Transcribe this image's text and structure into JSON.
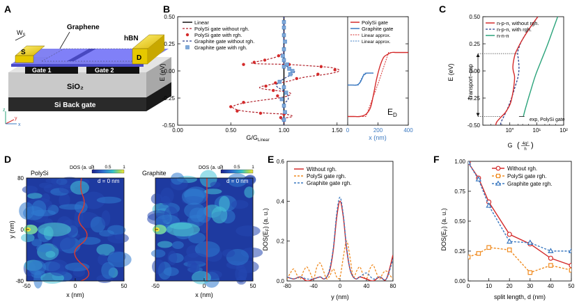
{
  "panels": {
    "A": {
      "letter": "A",
      "labels": {
        "graphene": "Graphene",
        "hbn": "hBN",
        "ws": "W",
        "ws_sub": "S",
        "source": "S",
        "drain": "D",
        "gate1": "Gate 1",
        "gate2": "Gate 2",
        "sio2": "SiO₂",
        "backgate": "Si Back gate"
      },
      "axes": {
        "z": "z",
        "y": "y",
        "x": "x"
      }
    },
    "B": {
      "letter": "B",
      "ylabel": "E (eV)",
      "xlabel_left": "G/G",
      "xlabel_left_sub": "Linear",
      "xlabel_right": "x (nm)",
      "ed": "E",
      "ed_sub": "D",
      "yticks": [
        "0.50",
        "0.25",
        "0.00",
        "-0.25",
        "-0.50"
      ],
      "xticks_left": [
        "0.00",
        "0.50",
        "1.00",
        "1.50"
      ],
      "xticks_right": [
        "0",
        "200",
        "400"
      ],
      "legend_left": [
        "Linear",
        "PolySi gate without rgh.",
        "PolySi gate with rgh.",
        "Graphite gate without rgh.",
        "Graphite gate with rgh."
      ],
      "legend_right": [
        "PolySi gate",
        "Graphite gate",
        "Linear   approx.",
        "Linear   approx."
      ]
    },
    "C": {
      "letter": "C",
      "ylabel": "E (eV)",
      "xlabel": "G",
      "xlabel_frac_num": "4q²",
      "xlabel_frac_den": "h",
      "yticks": [
        "0.50",
        "0.25",
        "0.00",
        "-0.25",
        "-0.50"
      ],
      "xticks": [
        "10°",
        "10¹",
        "10²"
      ],
      "legend": [
        "n-p-n, without rgh.",
        "n-p-n, with rgh.",
        "n-n-n"
      ],
      "transport_gap": "Transport–gap",
      "exp_label": "exp, PolySi gate"
    },
    "D": {
      "letter": "D",
      "left_title": "PolySi",
      "right_title": "Graphite",
      "dos_label": "DOS (a. u.)",
      "cbar_ticks": [
        "0",
        "0.5",
        "1"
      ],
      "d_label": "d = 0 nm",
      "ylabel": "y (nm)",
      "xlabel": "x (nm)",
      "yticks": [
        "80",
        "0",
        "-80"
      ],
      "xticks": [
        "-50",
        "0",
        "50"
      ]
    },
    "E": {
      "letter": "E",
      "ylabel": "DOS(E",
      "ylabel_sub": "F",
      "ylabel_end": ") (a. u.)",
      "xlabel": "y (nm)",
      "legend": [
        "Without rgh.",
        "PolySi gate rgh.",
        "Graphite gate rgh."
      ],
      "yticks": [
        "0.6",
        "0.4",
        "0.2",
        "0.0"
      ],
      "xticks": [
        "-80",
        "-40",
        "0",
        "40",
        "80"
      ]
    },
    "F": {
      "letter": "F",
      "ylabel": "DOS(E",
      "ylabel_sub": "F",
      "ylabel_end": ") (a. u.)",
      "xlabel": "split length, d (nm)",
      "legend": [
        "Without rgh.",
        "PolySi gate rgh.",
        "Graphite gate rgh."
      ],
      "yticks": [
        "1.00",
        "0.75",
        "0.50",
        "0.25",
        "0.00"
      ],
      "xticks": [
        "0",
        "10",
        "20",
        "30",
        "40",
        "50"
      ]
    }
  },
  "colors": {
    "red": "#d42a2a",
    "orange": "#f08a1e",
    "blue": "#3a78c0",
    "navy": "#2b3f8c",
    "green": "#2aa37a",
    "darkred": "#b0202a"
  },
  "chart_data": [
    {
      "panel": "B-left",
      "type": "line",
      "xlim": [
        0,
        1.6
      ],
      "ylim": [
        -0.5,
        0.5
      ],
      "series": [
        {
          "name": "PolySi gate without rgh.",
          "x": [
            1.0,
            1.0,
            0.98,
            0.93,
            0.82,
            0.7,
            1.02,
            1.2,
            1.45,
            1.52,
            1.4,
            1.18,
            1.02,
            0.85,
            0.78,
            1.05,
            1.0,
            0.72,
            0.56,
            0.52,
            0.62,
            0.85,
            1.02,
            1.08,
            0.98,
            1.0,
            1.0
          ],
          "y": [
            0.5,
            0.2,
            0.16,
            0.13,
            0.1,
            0.07,
            0.06,
            0.05,
            0.03,
            0.0,
            -0.03,
            -0.06,
            -0.1,
            -0.13,
            -0.16,
            -0.2,
            -0.24,
            -0.28,
            -0.31,
            -0.34,
            -0.37,
            -0.39,
            -0.4,
            -0.42,
            -0.44,
            -0.46,
            -0.5
          ]
        },
        {
          "name": "PolySi gate with rgh.",
          "x": [
            1.0,
            0.95,
            0.82,
            0.72,
            0.62,
            1.05,
            1.35,
            1.48,
            1.32,
            1.12,
            0.92,
            0.83,
            0.9,
            0.94,
            0.62,
            0.5,
            0.56,
            0.78,
            1.0,
            0.97
          ],
          "y": [
            0.2,
            0.14,
            0.1,
            0.08,
            0.06,
            0.06,
            0.04,
            0.01,
            -0.03,
            -0.07,
            -0.11,
            -0.14,
            -0.18,
            -0.23,
            -0.29,
            -0.33,
            -0.37,
            -0.39,
            -0.4,
            -0.43
          ]
        },
        {
          "name": "Graphite gate without rgh.",
          "x": [
            1.0,
            1.0,
            1.02,
            1.06,
            1.1,
            1.08,
            1.02,
            0.96,
            0.93,
            1.02,
            1.04,
            1.0,
            1.0
          ],
          "y": [
            0.5,
            0.08,
            0.05,
            0.02,
            0.0,
            -0.03,
            -0.06,
            -0.1,
            -0.14,
            -0.2,
            -0.26,
            -0.32,
            -0.5
          ]
        },
        {
          "name": "Graphite gate with rgh.",
          "x": [
            1.0,
            1.0,
            1.0,
            1.01,
            1.0,
            0.99,
            1.0,
            1.03,
            1.0,
            1.05,
            1.08,
            1.06,
            0.96,
            1.0,
            1.02,
            0.98,
            1.0,
            1.01,
            1.0
          ],
          "y": [
            0.45,
            0.4,
            0.33,
            0.27,
            0.2,
            0.14,
            0.1,
            0.06,
            0.04,
            0.02,
            0.0,
            -0.03,
            -0.1,
            -0.15,
            -0.2,
            -0.26,
            -0.32,
            -0.38,
            -0.45
          ]
        }
      ]
    },
    {
      "panel": "B-right",
      "type": "line",
      "xlim": [
        0,
        400
      ],
      "ylim": [
        -0.5,
        0.5
      ],
      "series": [
        {
          "name": "PolySi gate",
          "x": [
            0,
            40,
            80,
            120,
            150,
            170,
            190,
            210,
            225,
            240,
            260,
            290,
            320,
            360,
            400
          ],
          "y": [
            -0.42,
            -0.42,
            -0.42,
            -0.4,
            -0.34,
            -0.22,
            -0.08,
            0.03,
            0.09,
            0.13,
            0.15,
            0.17,
            0.17,
            0.17,
            0.17
          ]
        },
        {
          "name": "Graphite gate",
          "x": [
            0,
            30,
            60,
            80,
            95,
            105,
            115,
            125,
            140,
            170
          ],
          "y": [
            -0.13,
            -0.13,
            -0.13,
            -0.11,
            -0.07,
            -0.04,
            -0.03,
            -0.02,
            -0.02,
            -0.02
          ]
        },
        {
          "name": "Linear approx.",
          "x": [
            0,
            120,
            200,
            270,
            400
          ],
          "y": [
            -0.42,
            -0.42,
            -0.12,
            0.17,
            0.17
          ]
        }
      ]
    },
    {
      "panel": "C",
      "type": "line",
      "xscale": "log",
      "xlim": [
        0.1,
        100
      ],
      "ylim": [
        -0.5,
        0.5
      ],
      "series": [
        {
          "name": "n-p-n, without rgh.",
          "x": [
            11,
            5,
            2.8,
            1.9,
            1.6,
            1.4,
            1.3,
            1.35,
            1.5,
            1.45,
            1.3,
            1.05,
            0.7,
            0.45,
            0.33,
            0.3
          ],
          "y": [
            0.5,
            0.38,
            0.28,
            0.2,
            0.16,
            0.1,
            0.04,
            0.0,
            -0.05,
            -0.12,
            -0.2,
            -0.3,
            -0.38,
            -0.43,
            -0.47,
            -0.5
          ]
        },
        {
          "name": "n-p-n, with rgh.",
          "x": [
            11,
            5,
            2.8,
            2.1,
            1.95,
            2.1,
            2.2,
            2.0,
            1.6,
            1.2,
            0.85,
            0.6,
            0.48,
            0.45
          ],
          "y": [
            0.5,
            0.38,
            0.28,
            0.2,
            0.16,
            0.1,
            0.02,
            -0.06,
            -0.14,
            -0.24,
            -0.34,
            -0.42,
            -0.47,
            -0.5
          ]
        },
        {
          "name": "n-n-n",
          "x": [
            60,
            40,
            25,
            15,
            9,
            6,
            4.3,
            3.5,
            3.2
          ],
          "y": [
            0.5,
            0.38,
            0.24,
            0.1,
            -0.04,
            -0.18,
            -0.3,
            -0.38,
            -0.42
          ]
        },
        {
          "name": "exp, PolySi gate",
          "x": [
            2.2,
            3.5
          ],
          "y": [
            -0.42,
            -0.42
          ]
        }
      ],
      "transport_gap_range": [
        -0.42,
        0.16
      ]
    },
    {
      "panel": "E",
      "type": "line",
      "xlim": [
        -80,
        80
      ],
      "ylim": [
        0,
        0.6
      ],
      "series": [
        {
          "name": "Without rgh.",
          "x": [
            -80,
            -70,
            -60,
            -50,
            -40,
            -30,
            -25,
            -20,
            -15,
            -10,
            -5,
            0,
            5,
            10,
            15,
            20,
            25,
            30,
            40,
            50,
            60,
            70,
            80
          ],
          "y": [
            0.02,
            0.01,
            0.02,
            0.0,
            0.01,
            0.02,
            0.01,
            0.02,
            0.06,
            0.16,
            0.32,
            0.4,
            0.32,
            0.16,
            0.06,
            0.02,
            0.01,
            0.02,
            0.01,
            0.0,
            0.02,
            0.01,
            0.13
          ]
        },
        {
          "name": "PolySi gate rgh.",
          "x": [
            -80,
            -75,
            -70,
            -65,
            -60,
            -55,
            -50,
            -45,
            -40,
            -35,
            -30,
            -25,
            -20,
            -15,
            -10,
            -5,
            0,
            5,
            10,
            15,
            20,
            25,
            30,
            35,
            40,
            45,
            50,
            55,
            60,
            65,
            70,
            75,
            80
          ],
          "y": [
            0.01,
            0.04,
            0.06,
            0.03,
            0.01,
            0.05,
            0.07,
            0.04,
            0.01,
            0.07,
            0.09,
            0.05,
            0.01,
            0.03,
            0.06,
            0.02,
            0.02,
            0.12,
            0.2,
            0.12,
            0.02,
            0.05,
            0.07,
            0.03,
            0.01,
            0.06,
            0.08,
            0.04,
            0.01,
            0.04,
            0.05,
            0.03,
            0.01
          ]
        },
        {
          "name": "Graphite gate rgh.",
          "x": [
            -80,
            -70,
            -60,
            -50,
            -40,
            -30,
            -25,
            -20,
            -15,
            -10,
            -5,
            0,
            5,
            10,
            15,
            20,
            25,
            30,
            40,
            50,
            60,
            70,
            80
          ],
          "y": [
            0.02,
            0.01,
            0.02,
            0.01,
            0.01,
            0.02,
            0.01,
            0.02,
            0.07,
            0.17,
            0.34,
            0.42,
            0.33,
            0.17,
            0.06,
            0.02,
            0.01,
            0.02,
            0.04,
            0.01,
            0.02,
            0.01,
            0.11
          ]
        }
      ]
    },
    {
      "panel": "F",
      "type": "line",
      "xlim": [
        0,
        50
      ],
      "ylim": [
        0,
        1
      ],
      "categories": [
        0,
        5,
        10,
        20,
        30,
        40,
        50
      ],
      "series": [
        {
          "name": "Without rgh.",
          "values": [
            0.99,
            0.86,
            0.66,
            0.39,
            0.31,
            0.19,
            0.13
          ]
        },
        {
          "name": "PolySi gate rgh.",
          "values": [
            0.2,
            0.23,
            0.28,
            0.26,
            0.07,
            0.13,
            0.09
          ]
        },
        {
          "name": "Graphite gate rgh.",
          "values": [
            0.99,
            0.85,
            0.63,
            0.33,
            0.32,
            0.25,
            0.25
          ]
        }
      ]
    }
  ]
}
